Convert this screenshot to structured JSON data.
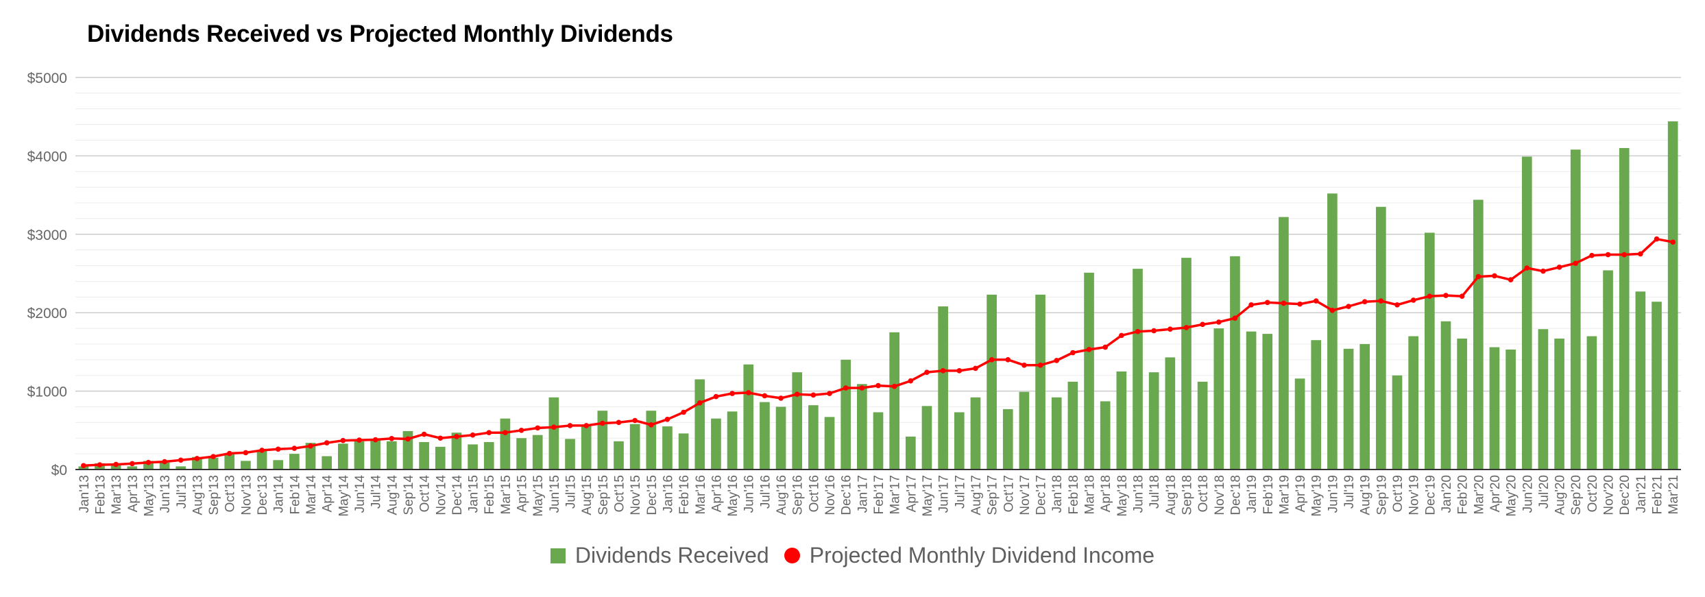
{
  "chart_data": {
    "type": "bar+line",
    "title": "Dividends Received vs Projected Monthly Dividends",
    "ylim": [
      0,
      5000
    ],
    "yticks": [
      "$0",
      "$1000",
      "$2000",
      "$3000",
      "$4000",
      "$5000"
    ],
    "grid": true,
    "legend_position": "bottom",
    "categories": [
      "Jan'13",
      "Feb'13",
      "Mar'13",
      "Apr'13",
      "May'13",
      "Jun'13",
      "Jul'13",
      "Aug'13",
      "Sep'13",
      "Oct'13",
      "Nov'13",
      "Dec'13",
      "Jan'14",
      "Feb'14",
      "Mar'14",
      "Apr'14",
      "May'14",
      "Jun'14",
      "Jul'14",
      "Aug'14",
      "Sep'14",
      "Oct'14",
      "Nov'14",
      "Dec'14",
      "Jan'15",
      "Feb'15",
      "Mar'15",
      "Apr'15",
      "May'15",
      "Jun'15",
      "Jul'15",
      "Aug'15",
      "Sep'15",
      "Oct'15",
      "Nov'15",
      "Dec'15",
      "Jan'16",
      "Feb'16",
      "Mar'16",
      "Apr'16",
      "May'16",
      "Jun'16",
      "Jul'16",
      "Aug'16",
      "Sep'16",
      "Oct'16",
      "Nov'16",
      "Dec'16",
      "Jan'17",
      "Feb'17",
      "Mar'17",
      "Apr'17",
      "May'17",
      "Jun'17",
      "Jul'17",
      "Aug'17",
      "Sep'17",
      "Oct'17",
      "Nov'17",
      "Dec'17",
      "Jan'18",
      "Feb'18",
      "Mar'18",
      "Apr'18",
      "May'18",
      "Jun'18",
      "Jul'18",
      "Aug'18",
      "Sep'18",
      "Oct'18",
      "Nov'18",
      "Dec'18",
      "Jan'19",
      "Feb'19",
      "Mar'19",
      "Apr'19",
      "May'19",
      "Jun'19",
      "Jul'19",
      "Aug'19",
      "Sep'19",
      "Oct'19",
      "Nov'19",
      "Dec'19",
      "Jan'20",
      "Feb'20",
      "Mar'20",
      "Apr'20",
      "May'20",
      "Jun'20",
      "Jul'20",
      "Aug'20",
      "Sep'20",
      "Oct'20",
      "Nov'20",
      "Dec'20",
      "Jan'21",
      "Feb'21",
      "Mar'21"
    ],
    "series": [
      {
        "name": "Dividends Received",
        "type": "bar",
        "color": "#6aa84f",
        "values": [
          40,
          80,
          60,
          40,
          110,
          90,
          40,
          160,
          150,
          200,
          110,
          240,
          120,
          200,
          340,
          170,
          330,
          360,
          390,
          360,
          490,
          350,
          290,
          470,
          320,
          350,
          650,
          400,
          440,
          920,
          390,
          570,
          750,
          360,
          580,
          750,
          550,
          460,
          1150,
          650,
          740,
          1340,
          860,
          800,
          1240,
          820,
          670,
          1400,
          1090,
          730,
          1750,
          420,
          810,
          2080,
          730,
          920,
          2230,
          770,
          990,
          2230,
          920,
          1120,
          2510,
          870,
          1250,
          2560,
          1240,
          1430,
          2700,
          1120,
          1800,
          2720,
          1760,
          1730,
          3220,
          1160,
          1650,
          3520,
          1540,
          1600,
          3350,
          1200,
          1700,
          3020,
          1890,
          1670,
          3440,
          1560,
          1530,
          3990,
          1790,
          1670,
          4080,
          1700,
          2540,
          4100,
          2270,
          2140,
          4440
        ]
      },
      {
        "name": "Projected Monthly Dividend Income",
        "type": "line",
        "color": "#ff0000",
        "values": [
          50,
          60,
          65,
          75,
          90,
          100,
          120,
          140,
          165,
          205,
          215,
          245,
          260,
          270,
          300,
          340,
          370,
          375,
          380,
          395,
          390,
          450,
          400,
          420,
          440,
          470,
          470,
          500,
          530,
          540,
          560,
          560,
          590,
          600,
          625,
          570,
          640,
          730,
          850,
          930,
          970,
          980,
          940,
          910,
          960,
          950,
          970,
          1040,
          1040,
          1070,
          1060,
          1130,
          1240,
          1260,
          1260,
          1290,
          1400,
          1400,
          1330,
          1330,
          1390,
          1490,
          1530,
          1560,
          1710,
          1760,
          1770,
          1790,
          1810,
          1850,
          1880,
          1930,
          2100,
          2130,
          2120,
          2110,
          2150,
          2030,
          2080,
          2140,
          2150,
          2100,
          2160,
          2210,
          2220,
          2210,
          2460,
          2470,
          2420,
          2570,
          2530,
          2580,
          2630,
          2730,
          2740,
          2740,
          2750,
          2940,
          2900
        ]
      }
    ]
  },
  "legend": {
    "bar_label": "Dividends Received",
    "line_label": "Projected Monthly Dividend Income"
  }
}
